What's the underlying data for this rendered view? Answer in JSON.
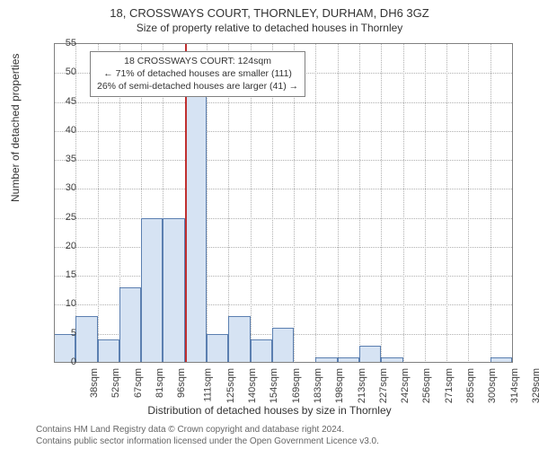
{
  "title": "18, CROSSWAYS COURT, THORNLEY, DURHAM, DH6 3GZ",
  "subtitle": "Size of property relative to detached houses in Thornley",
  "ylabel": "Number of detached properties",
  "xlabel": "Distribution of detached houses by size in Thornley",
  "footer_line1": "Contains HM Land Registry data © Crown copyright and database right 2024.",
  "footer_line2": "Contains public sector information licensed under the Open Government Licence v3.0.",
  "annotation": {
    "line1": "18 CROSSWAYS COURT: 124sqm",
    "line2": "← 71% of detached houses are smaller (111)",
    "line3": "26% of semi-detached houses are larger (41) →"
  },
  "chart": {
    "type": "histogram",
    "ymin": 0,
    "ymax": 55,
    "ytick_step": 5,
    "xticks": [
      "38sqm",
      "52sqm",
      "67sqm",
      "81sqm",
      "96sqm",
      "111sqm",
      "125sqm",
      "140sqm",
      "154sqm",
      "169sqm",
      "183sqm",
      "198sqm",
      "213sqm",
      "227sqm",
      "242sqm",
      "256sqm",
      "271sqm",
      "285sqm",
      "300sqm",
      "314sqm",
      "329sqm"
    ],
    "values": [
      5,
      8,
      4,
      13,
      25,
      25,
      46,
      5,
      8,
      4,
      6,
      0,
      1,
      1,
      3,
      1,
      0,
      0,
      0,
      0,
      1
    ],
    "bar_fill": "#d6e3f3",
    "bar_stroke": "#5b7fb0",
    "marker_index_after": 6,
    "marker_color": "#c03030",
    "background": "#ffffff",
    "grid_color": "#b0b0b0",
    "axis_color": "#808080",
    "label_fontsize": 11,
    "title_fontsize": 13
  }
}
